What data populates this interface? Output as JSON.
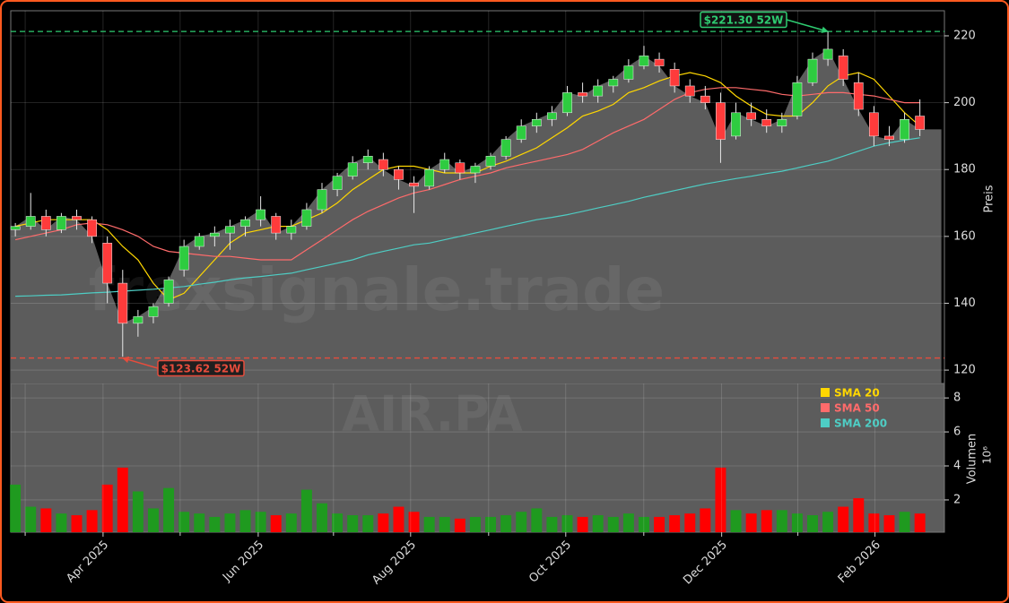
{
  "chart_data": [
    {
      "type": "candlestick",
      "watermark": "frexsignale.trade",
      "symbol": "AIR.PA",
      "ylabel": "Preis",
      "xlim": [
        -0.3,
        60.6
      ],
      "ylim": [
        116,
        227.5
      ],
      "yticks": [
        120,
        140,
        160,
        180,
        200,
        220
      ],
      "grid": true,
      "up_color": "#2ecc40",
      "down_color": "#ff3b3b",
      "area_color": "#5c5c5c",
      "open": [
        162,
        163,
        166,
        162,
        166,
        165,
        158,
        146,
        134,
        136,
        140,
        150,
        157,
        160,
        161,
        163,
        165,
        166,
        161,
        163,
        168,
        174,
        178,
        182,
        183,
        180,
        176,
        175,
        180,
        182,
        179,
        181,
        184,
        189,
        193,
        195,
        197,
        203,
        202,
        205,
        207,
        211,
        213,
        210,
        205,
        202,
        200,
        190,
        197,
        195,
        193,
        196,
        206,
        213,
        214,
        206,
        197,
        190,
        189,
        196
      ],
      "high": [
        164,
        173,
        168,
        167,
        168,
        166,
        160,
        150,
        138,
        140,
        148,
        159,
        161,
        163,
        165,
        166,
        172,
        167,
        165,
        170,
        176,
        179,
        184,
        186,
        185,
        181,
        178,
        181,
        185,
        183,
        182,
        185,
        190,
        195,
        197,
        199,
        205,
        206,
        207,
        208,
        213,
        217,
        215,
        212,
        207,
        205,
        203,
        200,
        200,
        198,
        197,
        208,
        215,
        221.3,
        216,
        209,
        199,
        193,
        197,
        201
      ],
      "low": [
        160,
        162,
        160,
        161,
        162,
        158,
        140,
        124,
        130,
        134,
        139,
        148,
        156,
        157,
        156,
        160,
        163,
        159,
        159,
        162,
        167,
        172,
        177,
        180,
        178,
        174,
        167,
        174,
        179,
        177,
        176,
        180,
        183,
        188,
        191,
        193,
        196,
        200,
        200,
        203,
        206,
        210,
        209,
        203,
        200,
        198,
        182,
        189,
        193,
        191,
        191,
        195,
        205,
        211,
        205,
        196,
        187,
        187,
        188,
        190
      ],
      "close": [
        163,
        166,
        162,
        166,
        165,
        160,
        146,
        134,
        136,
        139,
        147,
        157,
        160,
        161,
        163,
        165,
        168,
        161,
        163,
        168,
        174,
        178,
        182,
        184,
        180,
        177,
        175,
        180,
        183,
        179,
        181,
        184,
        189,
        193,
        195,
        197,
        203,
        202,
        205,
        207,
        211,
        214,
        211,
        205,
        202,
        200,
        189,
        197,
        195,
        193,
        195,
        206,
        213,
        216,
        207,
        198,
        190,
        189,
        195,
        192
      ],
      "overlays": [
        {
          "name": "SMA 20",
          "color": "#ffd700",
          "values": [
            163,
            164,
            165,
            165,
            165,
            165,
            162,
            157,
            153,
            146,
            141,
            143,
            148,
            153,
            158,
            161,
            162,
            163,
            163,
            165,
            167,
            170,
            174,
            177,
            180,
            181,
            181,
            180,
            179,
            179,
            179,
            181,
            182.5,
            184.5,
            186.5,
            189.5,
            192.5,
            196,
            197.5,
            199.5,
            203,
            204.5,
            206.5,
            208,
            209,
            208,
            206,
            202,
            199,
            196.5,
            196,
            196,
            200,
            205,
            208,
            209,
            207,
            202,
            197,
            193
          ]
        },
        {
          "name": "SMA 50",
          "color": "#ff6b6b",
          "values": [
            159,
            160,
            161,
            162,
            163.5,
            164,
            163.5,
            162,
            160,
            157,
            155.5,
            155,
            154.5,
            154,
            154,
            153.5,
            153,
            153,
            153,
            156,
            159,
            162,
            165,
            167.5,
            169.5,
            171.5,
            173,
            174,
            175.5,
            177,
            178,
            179,
            180.5,
            181.5,
            182.5,
            183.5,
            184.5,
            186,
            188.5,
            191,
            193,
            195,
            198,
            201,
            203,
            204,
            204.5,
            204.5,
            204,
            203.5,
            202.5,
            202,
            202.5,
            203,
            203,
            202.5,
            202,
            201,
            200,
            200
          ]
        },
        {
          "name": "SMA 200",
          "color": "#4ecdc4",
          "values": [
            142.1,
            142.2,
            142.4,
            142.5,
            142.8,
            143.1,
            143.3,
            143.6,
            143.9,
            144.2,
            144.6,
            145,
            145.7,
            146.3,
            147,
            147.6,
            148,
            148.5,
            149,
            150,
            151,
            152,
            153,
            154.5,
            155.5,
            156.5,
            157.5,
            158,
            159,
            160,
            161,
            162,
            163,
            164,
            165,
            165.7,
            166.5,
            167.5,
            168.5,
            169.5,
            170.5,
            171.7,
            172.7,
            173.7,
            174.7,
            175.7,
            176.5,
            177.3,
            178,
            178.8,
            179.5,
            180.5,
            181.5,
            182.5,
            184,
            185.5,
            187,
            188,
            188.8,
            189.5
          ]
        }
      ],
      "levels": [
        {
          "label": "$221.30 52W",
          "value": 221.3,
          "at": 53,
          "color": "#2ecc71"
        },
        {
          "label": "$123.62 52W",
          "value": 123.62,
          "at": 7,
          "color": "#e74c3c"
        }
      ]
    },
    {
      "type": "bar",
      "ylabel": "Volumen",
      "offset_label": "10⁶",
      "xlim": [
        -0.3,
        60.6
      ],
      "ylim": [
        0.1,
        8.85
      ],
      "yticks": [
        2,
        4,
        6,
        8
      ],
      "grid": true,
      "up_color": "#1f9a1f",
      "down_color": "#ff0000",
      "xticks": [
        {
          "value": 5.72,
          "label": "Apr 2025"
        },
        {
          "value": 15.84,
          "label": "Jun 2025"
        },
        {
          "value": 25.78,
          "label": "Aug 2025"
        },
        {
          "value": 35.9,
          "label": "Oct 2025"
        },
        {
          "value": 46.07,
          "label": "Dec 2025"
        },
        {
          "value": 56.07,
          "label": "Feb 2026"
        }
      ],
      "xminor_ticks": [
        0.64,
        10.75,
        20.75,
        30.87,
        40.99,
        51.04
      ],
      "values": [
        2.9,
        1.6,
        1.5,
        1.2,
        1.1,
        1.4,
        2.9,
        3.9,
        2.5,
        1.5,
        2.7,
        1.3,
        1.2,
        1.0,
        1.2,
        1.4,
        1.3,
        1.1,
        1.2,
        2.6,
        1.8,
        1.2,
        1.1,
        1.1,
        1.2,
        1.6,
        1.3,
        1.0,
        1.0,
        0.9,
        1.0,
        1.0,
        1.1,
        1.3,
        1.5,
        1.0,
        1.1,
        1.0,
        1.1,
        1.0,
        1.2,
        1.0,
        1.0,
        1.1,
        1.2,
        1.5,
        3.9,
        1.4,
        1.2,
        1.4,
        1.4,
        1.2,
        1.1,
        1.3,
        1.6,
        2.1,
        1.2,
        1.1,
        1.3,
        1.2
      ]
    }
  ]
}
